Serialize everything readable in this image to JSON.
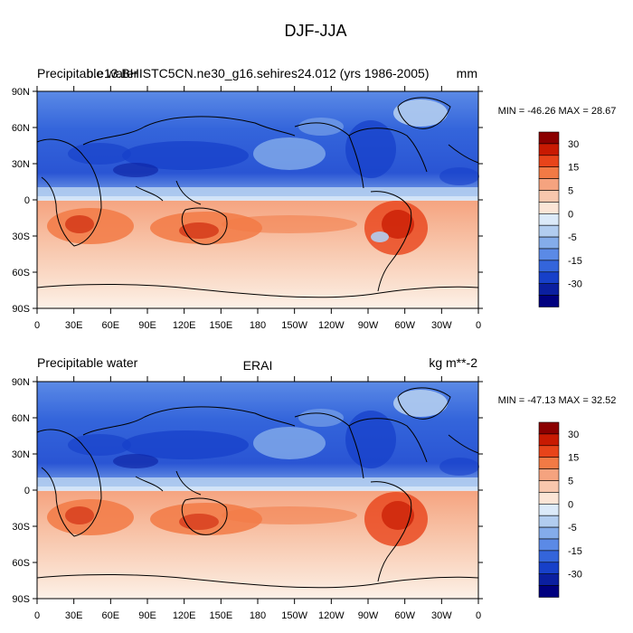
{
  "figure": {
    "title": "DJF-JJA"
  },
  "panels": [
    {
      "left_label": "Precipitable water",
      "center_label": "b.e13.BHISTC5CN.ne30_g16.sehires24.012 (yrs 1986-2005)",
      "right_label": "mm",
      "stats": "MIN = -46.26 MAX =  28.67"
    },
    {
      "left_label": "Precipitable water",
      "center_label": "ERAI",
      "right_label": "kg m**-2",
      "stats": "MIN = -47.13 MAX =  32.52"
    }
  ],
  "axes": {
    "lat_ticks": [
      "90N",
      "60N",
      "30N",
      "0",
      "30S",
      "60S",
      "90S"
    ],
    "lon_ticks": [
      "0",
      "30E",
      "60E",
      "90E",
      "120E",
      "150E",
      "180",
      "150W",
      "120W",
      "90W",
      "60W",
      "30W",
      "0"
    ]
  },
  "colorbar": {
    "labels": [
      "30",
      "15",
      "5",
      "0",
      "-5",
      "-15",
      "-30"
    ],
    "colors": [
      "#8b0000",
      "#c81a02",
      "#e8441a",
      "#f27a45",
      "#f5a37f",
      "#f8c7ad",
      "#fbe5d6",
      "#dceaf9",
      "#b2cdf0",
      "#84acea",
      "#5b8ae6",
      "#3465db",
      "#1740c9",
      "#0b1fa0",
      "#00007f"
    ]
  },
  "chart_data": [
    {
      "type": "heatmap",
      "title": "b.e13.BHISTC5CN.ne30_g16.sehires24.012 (yrs 1986-2005)",
      "variable": "Precipitable water",
      "units": "mm",
      "season": "DJF-JJA",
      "x_range": [
        0,
        360
      ],
      "y_range": [
        -90,
        90
      ],
      "min": -46.26,
      "max": 28.67,
      "levels": [
        -35,
        -30,
        -25,
        -20,
        -15,
        -10,
        -5,
        -2,
        0,
        2,
        5,
        10,
        15,
        20,
        25,
        30
      ]
    },
    {
      "type": "heatmap",
      "title": "ERAI",
      "variable": "Precipitable water",
      "units": "kg m**-2",
      "season": "DJF-JJA",
      "x_range": [
        0,
        360
      ],
      "y_range": [
        -90,
        90
      ],
      "min": -47.13,
      "max": 32.52,
      "levels": [
        -35,
        -30,
        -25,
        -20,
        -15,
        -10,
        -5,
        -2,
        0,
        2,
        5,
        10,
        15,
        20,
        25,
        30
      ]
    }
  ]
}
